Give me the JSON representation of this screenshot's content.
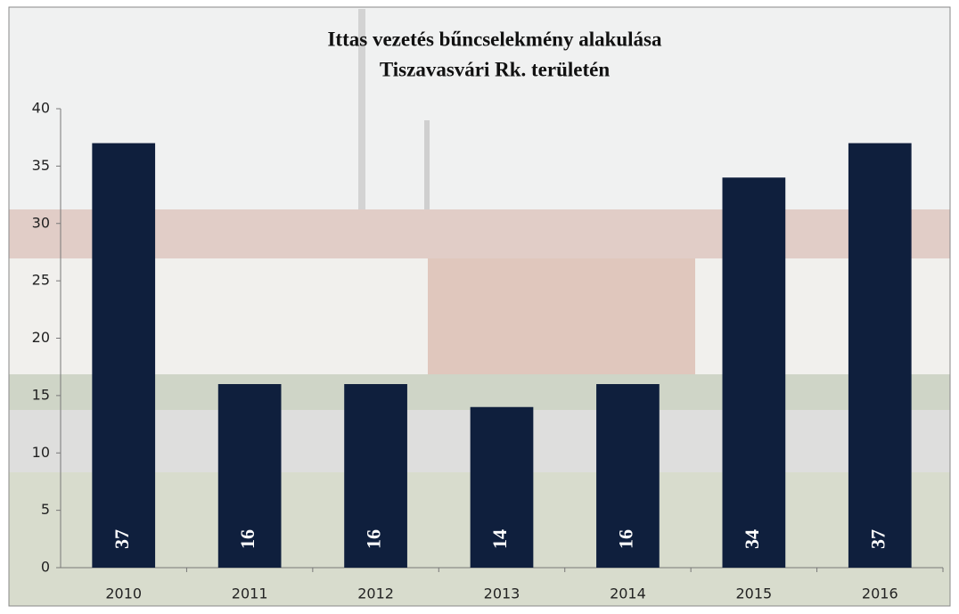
{
  "chart_data": {
    "type": "bar",
    "title": [
      "Ittas vezetés bűncselekmény alakulása",
      "Tiszavasvári Rk. területén"
    ],
    "categories": [
      "2010",
      "2011",
      "2012",
      "2013",
      "2014",
      "2015",
      "2016"
    ],
    "values": [
      37,
      16,
      16,
      14,
      16,
      34,
      37
    ],
    "color": "#0f1f3d",
    "ylim": [
      0,
      40
    ],
    "yticks": [
      0,
      5,
      10,
      15,
      20,
      25,
      30,
      35,
      40
    ],
    "grid": false,
    "data_labels": true
  }
}
